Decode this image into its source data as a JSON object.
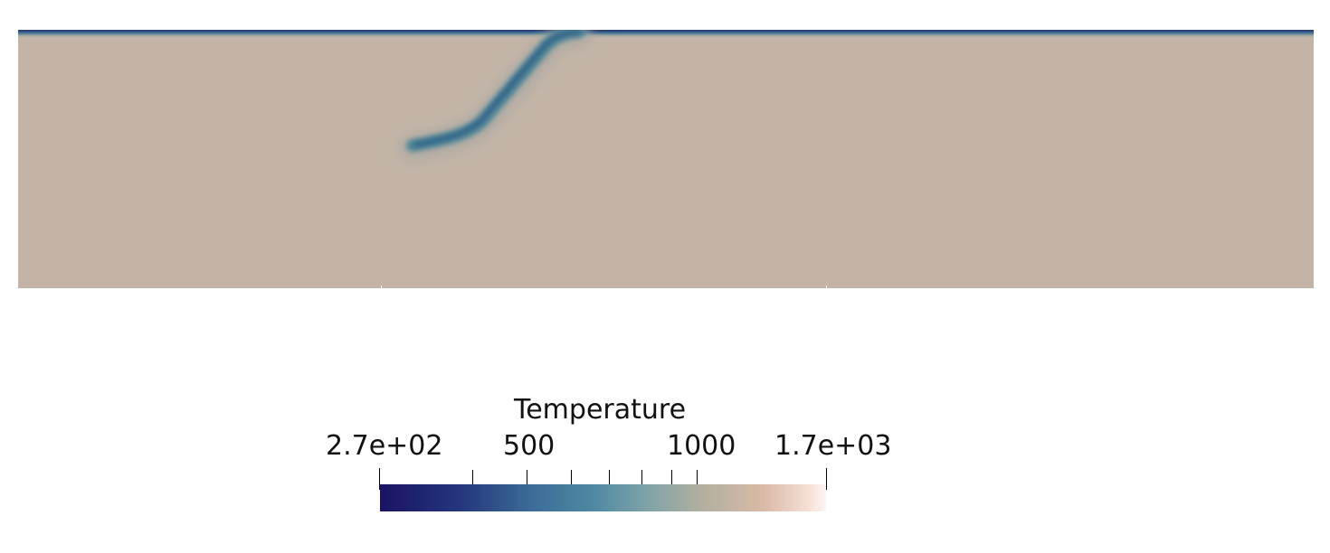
{
  "visualization": {
    "field": "Temperature",
    "colormap": [
      "#1a1462",
      "#24367c",
      "#3c6c98",
      "#4f89a2",
      "#7fa3a8",
      "#b1afa0",
      "#d9baa6",
      "#f5dfd5",
      "#fdf5f1"
    ],
    "background_color": "#c3b4a7"
  },
  "scalar_bar": {
    "title": "Temperature",
    "range": [
      270,
      1700
    ],
    "labels": {
      "min": "2.7e+02",
      "mid_low": "500",
      "mid_high": "1000",
      "max": "1.7e+03"
    },
    "tick_values": [
      270,
      400,
      500,
      600,
      700,
      800,
      900,
      1000,
      1700
    ]
  }
}
